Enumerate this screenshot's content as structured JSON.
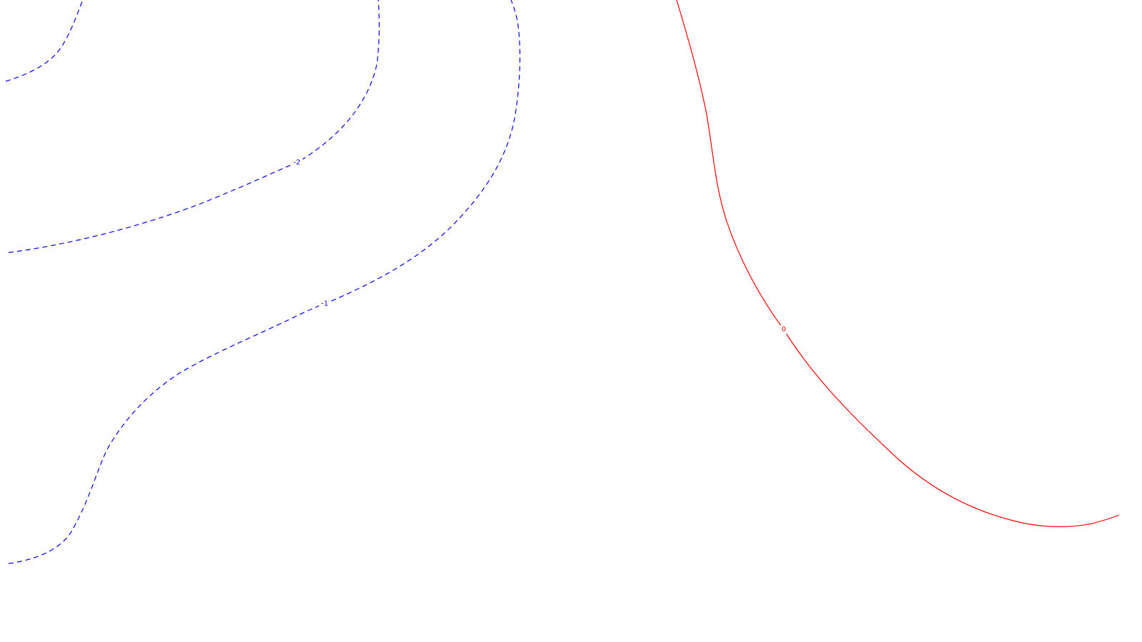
{
  "chart_data": {
    "type": "contour",
    "title": "",
    "xlabel": "",
    "ylabel": "",
    "grid": false,
    "legend": false,
    "colors": {
      "background": "#ffffff",
      "negative_levels": "#0000ff",
      "zero_level": "#ff0000"
    },
    "levels": [
      {
        "value": -2,
        "label": "-2",
        "color": "#0000ff",
        "style": "dashed"
      },
      {
        "value": -1,
        "label": "-1",
        "color": "#0000ff",
        "style": "dashed"
      },
      {
        "value": 0,
        "label": "0",
        "color": "#ff0000",
        "style": "solid"
      }
    ]
  }
}
